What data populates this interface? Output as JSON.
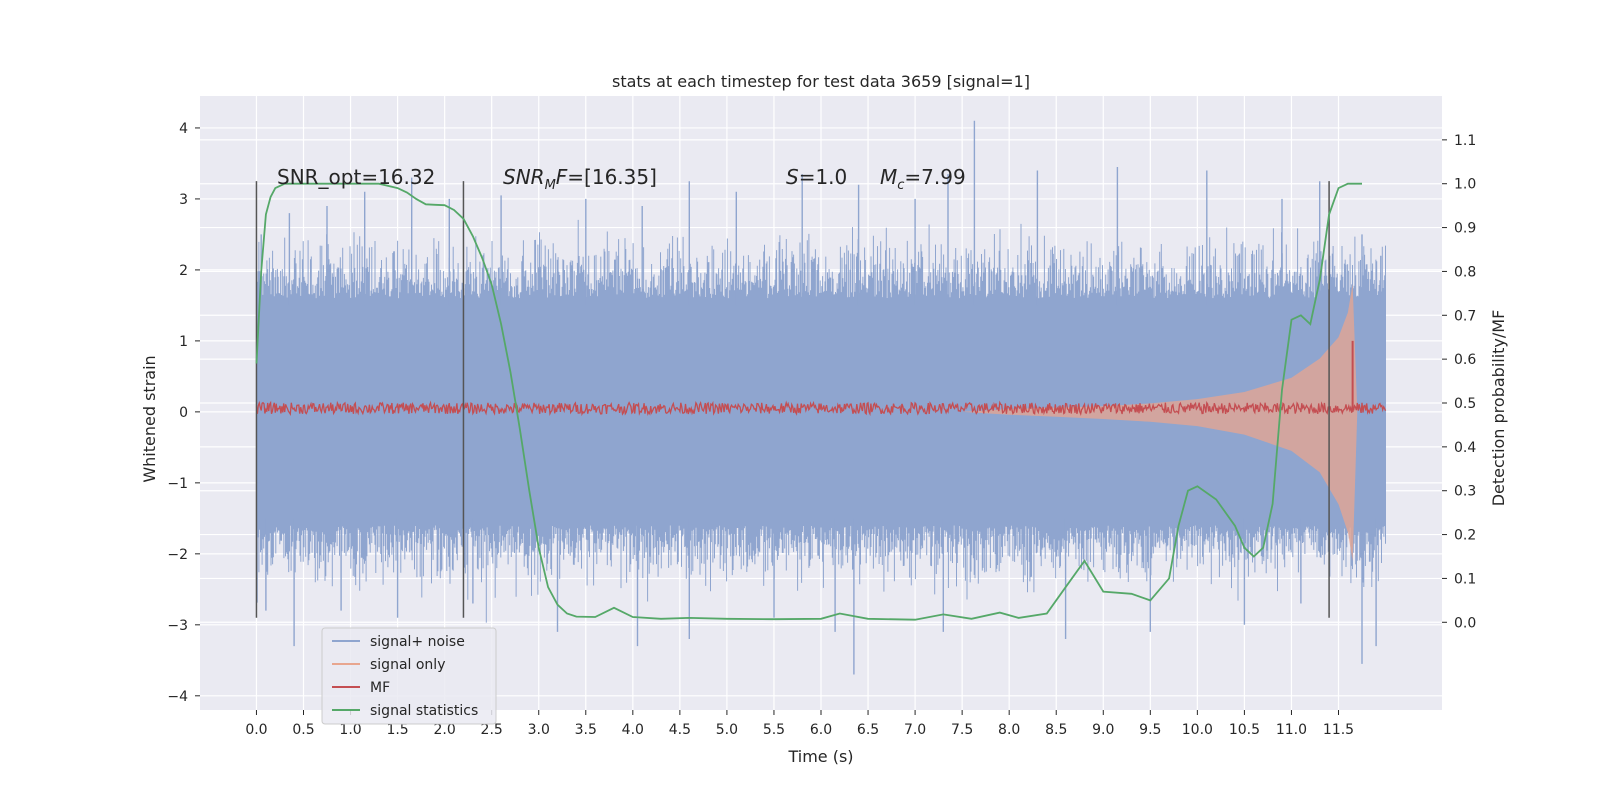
{
  "chart_data": {
    "type": "line",
    "title": "stats at each timestep for test data 3659 [signal=1]",
    "xlabel": "Time (s)",
    "ylabel": "Whitened strain",
    "y2label": "Detection probability/MF",
    "xlim": [
      -0.6,
      12.6
    ],
    "ylim": [
      -4.2,
      4.45
    ],
    "y2lim": [
      -0.2,
      1.2
    ],
    "x_ticks": [
      0.0,
      0.5,
      1.0,
      1.5,
      2.0,
      2.5,
      3.0,
      3.5,
      4.0,
      4.5,
      5.0,
      5.5,
      6.0,
      6.5,
      7.0,
      7.5,
      8.0,
      8.5,
      9.0,
      9.5,
      10.0,
      10.5,
      11.0,
      11.5
    ],
    "x_tick_labels": [
      "0.0",
      "0.5",
      "1.0",
      "1.5",
      "2.0",
      "2.5",
      "3.0",
      "3.5",
      "4.0",
      "4.5",
      "5.0",
      "5.5",
      "6.0",
      "6.5",
      "7.0",
      "7.5",
      "8.0",
      "8.5",
      "9.0",
      "9.5",
      "10.0",
      "10.5",
      "11.0",
      "11.5"
    ],
    "y_ticks": [
      -4,
      -3,
      -2,
      -1,
      0,
      1,
      2,
      3,
      4
    ],
    "y_tick_labels": [
      "−4",
      "−3",
      "−2",
      "−1",
      "0",
      "1",
      "2",
      "3",
      "4"
    ],
    "y2_ticks": [
      0.0,
      0.1,
      0.2,
      0.3,
      0.4,
      0.5,
      0.6,
      0.7,
      0.8,
      0.9,
      1.0,
      1.1
    ],
    "y2_tick_labels": [
      "0.0",
      "0.1",
      "0.2",
      "0.3",
      "0.4",
      "0.5",
      "0.6",
      "0.7",
      "0.8",
      "0.9",
      "1.0",
      "1.1"
    ],
    "grid": true,
    "legend_position": "lower-left",
    "annotations": {
      "snr_opt": "SNR_opt=16.32",
      "snr_mf_base": "SNR",
      "snr_mf_sub": "M",
      "snr_mf_rest": "F=[16.35]",
      "s_italic": "S",
      "s_rest": "=1.0",
      "mc_base": "M",
      "mc_sub": "c",
      "mc_rest": "=7.99"
    },
    "vertical_lines_x": [
      0.0,
      2.2,
      11.4
    ],
    "vertical_lines_yrange": [
      -2.9,
      3.25
    ],
    "series": [
      {
        "name": "signal+ noise",
        "color": "#8fa5cf",
        "axis": "left",
        "description_points": {
          "x_range": [
            0.0,
            12.0
          ],
          "typical_envelope": [
            -1.6,
            1.6
          ],
          "peaks_up": [
            [
              0.05,
              2.5
            ],
            [
              0.35,
              2.8
            ],
            [
              0.75,
              2.9
            ],
            [
              1.15,
              3.1
            ],
            [
              1.65,
              3.3
            ],
            [
              2.05,
              3.0
            ],
            [
              2.6,
              3.05
            ],
            [
              3.5,
              3.0
            ],
            [
              4.1,
              2.9
            ],
            [
              4.6,
              3.25
            ],
            [
              5.1,
              3.1
            ],
            [
              5.8,
              3.35
            ],
            [
              6.4,
              3.2
            ],
            [
              7.0,
              3.0
            ],
            [
              7.35,
              3.35
            ],
            [
              7.63,
              4.1
            ],
            [
              8.3,
              3.4
            ],
            [
              9.15,
              3.45
            ],
            [
              10.1,
              3.4
            ],
            [
              10.9,
              3.0
            ],
            [
              11.3,
              3.25
            ],
            [
              11.75,
              2.5
            ],
            [
              11.95,
              2.2
            ]
          ],
          "peaks_down": [
            [
              0.1,
              -2.8
            ],
            [
              0.4,
              -3.3
            ],
            [
              0.9,
              -2.8
            ],
            [
              1.5,
              -2.9
            ],
            [
              2.3,
              -2.7
            ],
            [
              3.2,
              -3.1
            ],
            [
              4.05,
              -3.3
            ],
            [
              4.6,
              -3.2
            ],
            [
              5.5,
              -2.9
            ],
            [
              6.15,
              -3.1
            ],
            [
              6.35,
              -3.7
            ],
            [
              7.3,
              -3.1
            ],
            [
              8.6,
              -3.2
            ],
            [
              9.5,
              -3.1
            ],
            [
              10.5,
              -3.0
            ],
            [
              11.1,
              -2.7
            ],
            [
              11.75,
              -3.55
            ],
            [
              11.9,
              -3.3
            ]
          ]
        }
      },
      {
        "name": "signal only",
        "color": "#e8a68f",
        "axis": "left",
        "envelope": [
          [
            7.5,
            0.0
          ],
          [
            8.0,
            0.04
          ],
          [
            8.5,
            0.06
          ],
          [
            9.0,
            0.08
          ],
          [
            9.5,
            0.12
          ],
          [
            10.0,
            0.18
          ],
          [
            10.5,
            0.28
          ],
          [
            11.0,
            0.48
          ],
          [
            11.3,
            0.75
          ],
          [
            11.5,
            1.05
          ],
          [
            11.6,
            1.4
          ],
          [
            11.65,
            1.8
          ],
          [
            11.7,
            0.0
          ]
        ],
        "neg_envelope": [
          [
            7.5,
            0.0
          ],
          [
            8.0,
            -0.04
          ],
          [
            8.5,
            -0.07
          ],
          [
            9.0,
            -0.1
          ],
          [
            9.5,
            -0.14
          ],
          [
            10.0,
            -0.2
          ],
          [
            10.5,
            -0.32
          ],
          [
            11.0,
            -0.55
          ],
          [
            11.3,
            -0.85
          ],
          [
            11.5,
            -1.3
          ],
          [
            11.6,
            -1.7
          ],
          [
            11.65,
            -2.1
          ],
          [
            11.7,
            0.0
          ]
        ]
      },
      {
        "name": "MF",
        "color": "#c44e52",
        "axis": "left",
        "baseline": 0.05,
        "jitter": 0.08,
        "spike": [
          11.65,
          1.0
        ]
      },
      {
        "name": "signal statistics",
        "color": "#55a868",
        "axis": "right",
        "x": [
          0.0,
          0.05,
          0.1,
          0.15,
          0.2,
          0.3,
          0.5,
          1.0,
          1.3,
          1.5,
          1.6,
          1.7,
          1.8,
          1.9,
          2.0,
          2.1,
          2.2,
          2.3,
          2.4,
          2.5,
          2.6,
          2.7,
          2.8,
          2.9,
          3.0,
          3.1,
          3.2,
          3.3,
          3.4,
          3.6,
          3.8,
          4.0,
          4.3,
          4.6,
          5.0,
          5.5,
          6.0,
          6.2,
          6.5,
          7.0,
          7.3,
          7.6,
          7.9,
          8.1,
          8.4,
          8.6,
          8.8,
          9.0,
          9.3,
          9.5,
          9.7,
          9.8,
          9.9,
          10.0,
          10.2,
          10.4,
          10.5,
          10.6,
          10.7,
          10.8,
          10.9,
          11.0,
          11.1,
          11.2,
          11.3,
          11.4,
          11.5,
          11.6,
          11.75
        ],
        "values": [
          0.59,
          0.8,
          0.93,
          0.97,
          0.99,
          1.0,
          1.0,
          1.0,
          1.0,
          0.99,
          0.98,
          0.965,
          0.953,
          0.952,
          0.951,
          0.94,
          0.92,
          0.88,
          0.83,
          0.77,
          0.68,
          0.57,
          0.44,
          0.3,
          0.17,
          0.08,
          0.04,
          0.02,
          0.013,
          0.012,
          0.033,
          0.012,
          0.008,
          0.01,
          0.008,
          0.007,
          0.008,
          0.02,
          0.008,
          0.006,
          0.018,
          0.008,
          0.022,
          0.01,
          0.02,
          0.08,
          0.14,
          0.07,
          0.065,
          0.05,
          0.1,
          0.22,
          0.3,
          0.31,
          0.28,
          0.22,
          0.17,
          0.15,
          0.17,
          0.27,
          0.53,
          0.69,
          0.7,
          0.68,
          0.78,
          0.93,
          0.99,
          1.0,
          1.0
        ]
      }
    ]
  }
}
